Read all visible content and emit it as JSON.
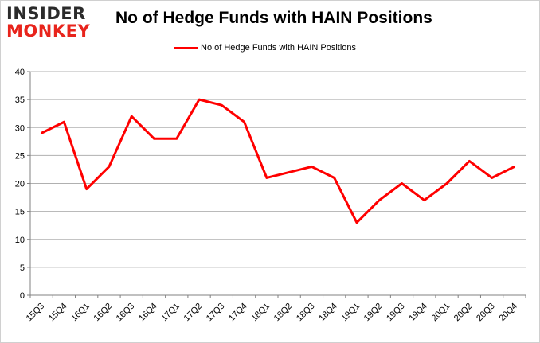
{
  "logo": {
    "line1": "INSIDER",
    "line2": "MONKEY"
  },
  "chart_data": {
    "type": "line",
    "title": "No of Hedge Funds with HAIN Positions",
    "xlabel": "",
    "ylabel": "",
    "ylim": [
      0,
      40
    ],
    "yticks": [
      0,
      5,
      10,
      15,
      20,
      25,
      30,
      35,
      40
    ],
    "grid": true,
    "legend": "top-center",
    "categories": [
      "15Q3",
      "15Q4",
      "16Q1",
      "16Q2",
      "16Q3",
      "16Q4",
      "17Q1",
      "17Q2",
      "17Q3",
      "17Q4",
      "18Q1",
      "18Q2",
      "18Q3",
      "18Q4",
      "19Q1",
      "19Q2",
      "19Q3",
      "19Q4",
      "20Q1",
      "20Q2",
      "20Q3",
      "20Q4"
    ],
    "series": [
      {
        "name": "No of Hedge Funds with HAIN Positions",
        "color": "#ff0000",
        "values": [
          29,
          31,
          19,
          23,
          32,
          28,
          28,
          35,
          34,
          31,
          21,
          22,
          23,
          21,
          13,
          17,
          20,
          17,
          20,
          24,
          21,
          23
        ]
      }
    ]
  }
}
